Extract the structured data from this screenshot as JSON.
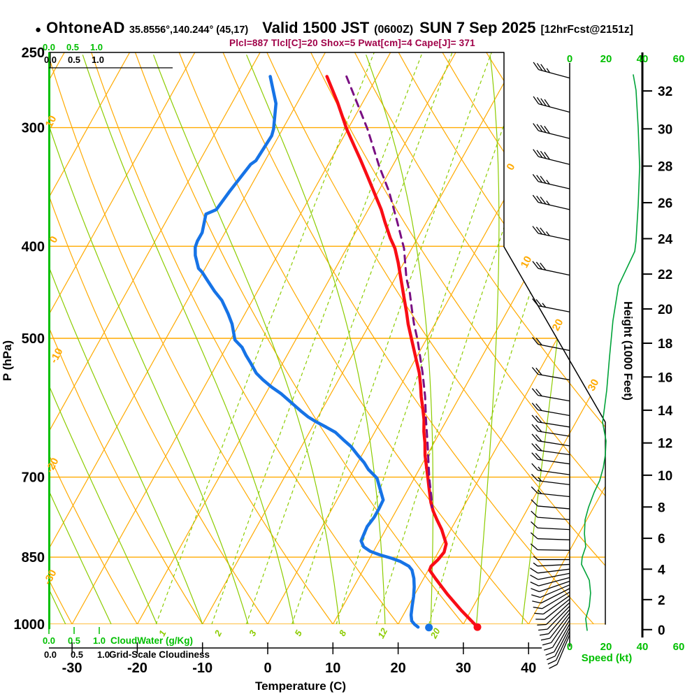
{
  "header": {
    "bullet": "●",
    "station": "OhtoneAD",
    "coords": "35.8556°,140.244° (45,17)",
    "valid": "Valid 1500 JST",
    "valid_z": "(0600Z)",
    "date": "SUN 7 Sep 2025",
    "fcst": "[12hrFcst@2151z]"
  },
  "stats_line": "Plcl=887 Tlcl[C]=20 Shox=5 Pwat[cm]=4 Cape[J]= 371",
  "stats": {
    "plcl": 887,
    "tlcl_c": 20,
    "shox": 5,
    "pwat_cm": 4,
    "cape_j": 371
  },
  "colors": {
    "temperature": "#f90d15",
    "dewpoint": "#1673e6",
    "parcel": "#7a0f82",
    "stats": "#a00048",
    "grid_orange": "#ffaa00",
    "grid_green": "#8ccc00",
    "speed_green": "#00a339",
    "bright_green": "#00bf00",
    "black": "#000000"
  },
  "chart_data": {
    "type": "skewt-logp",
    "pressure_axis": {
      "label": "P (hPa)",
      "ticks": [
        250,
        300,
        400,
        500,
        700,
        850,
        1000
      ],
      "gridlines": [
        300,
        400,
        500,
        700,
        850,
        1000
      ],
      "range": [
        250,
        1000
      ]
    },
    "temperature_axis": {
      "label": "Temperature (C)",
      "ticks": [
        -30,
        -20,
        -10,
        0,
        10,
        20,
        30,
        40
      ]
    },
    "height_axis": {
      "label": "Height (1000 Feet)",
      "ticks": [
        0,
        2,
        4,
        6,
        8,
        10,
        12,
        14,
        16,
        18,
        20,
        22,
        24,
        26,
        28,
        30,
        32
      ]
    },
    "speed_axis": {
      "label": "Speed (kt)",
      "ticks": [
        0,
        20,
        40,
        60
      ]
    },
    "cloudwater_axis": {
      "label": "CloudWater (g/Kg)",
      "ticks": [
        "0.0",
        "0.5",
        "1.0"
      ]
    },
    "cloudiness_axis": {
      "label": "Grid-Scale Cloudiness",
      "ticks": [
        "0.0",
        "0.5",
        "1.0"
      ]
    },
    "isotherm_labels": [
      0,
      10,
      20,
      30
    ],
    "dry_adiabat_labels": [
      10,
      0,
      -10,
      -20,
      -30
    ],
    "mixing_ratio_lines": [
      1,
      2,
      3,
      5,
      8,
      12,
      20
    ],
    "moist_adiabat_surface_temps": [
      -31,
      -24,
      -17,
      -10,
      -3,
      4,
      11,
      18,
      25,
      32,
      39
    ],
    "isotherms": {
      "start": -90,
      "end": 40,
      "step": 10
    },
    "dry_adiabats": {
      "start": -40,
      "end": 110,
      "step": 10
    },
    "temperature_profile": [
      [
        265,
        -37.7
      ],
      [
        282,
        -33.9
      ],
      [
        301,
        -30.2
      ],
      [
        314,
        -27.5
      ],
      [
        324,
        -25.5
      ],
      [
        339,
        -22.7
      ],
      [
        356,
        -19.7
      ],
      [
        366,
        -18.0
      ],
      [
        377,
        -16.4
      ],
      [
        392,
        -14.2
      ],
      [
        402,
        -12.6
      ],
      [
        416,
        -10.9
      ],
      [
        426,
        -9.8
      ],
      [
        453,
        -7.0
      ],
      [
        469,
        -5.4
      ],
      [
        483,
        -4.1
      ],
      [
        502,
        -2.2
      ],
      [
        530,
        0.5
      ],
      [
        544,
        1.8
      ],
      [
        560,
        3.0
      ],
      [
        576,
        4.1
      ],
      [
        592,
        5.3
      ],
      [
        609,
        6.5
      ],
      [
        627,
        7.5
      ],
      [
        644,
        8.6
      ],
      [
        664,
        9.7
      ],
      [
        702,
        12.1
      ],
      [
        722,
        13.3
      ],
      [
        744,
        14.6
      ],
      [
        760,
        15.7
      ],
      [
        776,
        17.0
      ],
      [
        795,
        18.6
      ],
      [
        823,
        20.5
      ],
      [
        840,
        20.9
      ],
      [
        855,
        20.6
      ],
      [
        869,
        20.1
      ],
      [
        877,
        20.2
      ],
      [
        895,
        21.8
      ],
      [
        930,
        25.0
      ],
      [
        967,
        28.5
      ],
      [
        1007,
        32.4
      ]
    ],
    "dewpoint_profile": [
      [
        265,
        -46.4
      ],
      [
        283,
        -43.2
      ],
      [
        301,
        -41.4
      ],
      [
        306,
        -41.1
      ],
      [
        325,
        -41.4
      ],
      [
        328,
        -41.9
      ],
      [
        350,
        -42.8
      ],
      [
        366,
        -43.3
      ],
      [
        370,
        -44.5
      ],
      [
        387,
        -43.5
      ],
      [
        395,
        -43.5
      ],
      [
        401,
        -43.3
      ],
      [
        409,
        -42.6
      ],
      [
        422,
        -41.0
      ],
      [
        426,
        -40.1
      ],
      [
        434,
        -38.7
      ],
      [
        446,
        -36.6
      ],
      [
        456,
        -34.7
      ],
      [
        471,
        -32.6
      ],
      [
        483,
        -31.1
      ],
      [
        502,
        -29.3
      ],
      [
        511,
        -27.6
      ],
      [
        521,
        -26.3
      ],
      [
        531,
        -24.9
      ],
      [
        544,
        -23.2
      ],
      [
        553,
        -21.6
      ],
      [
        563,
        -19.6
      ],
      [
        572,
        -17.6
      ],
      [
        585,
        -15.2
      ],
      [
        596,
        -13.2
      ],
      [
        605,
        -11.5
      ],
      [
        612,
        -9.9
      ],
      [
        620,
        -7.9
      ],
      [
        628,
        -6.0
      ],
      [
        641,
        -3.9
      ],
      [
        650,
        -2.4
      ],
      [
        664,
        -0.6
      ],
      [
        676,
        1.0
      ],
      [
        687,
        2.2
      ],
      [
        702,
        4.3
      ],
      [
        740,
        7.1
      ],
      [
        756,
        7.2
      ],
      [
        772,
        7.2
      ],
      [
        789,
        6.9
      ],
      [
        817,
        7.2
      ],
      [
        829,
        8.1
      ],
      [
        838,
        9.5
      ],
      [
        845,
        11.2
      ],
      [
        852,
        13.3
      ],
      [
        859,
        15.0
      ],
      [
        869,
        16.7
      ],
      [
        877,
        17.5
      ],
      [
        895,
        18.5
      ],
      [
        914,
        19.3
      ],
      [
        935,
        20.0
      ],
      [
        957,
        20.6
      ],
      [
        978,
        21.2
      ],
      [
        992,
        21.8
      ],
      [
        1000,
        22.5
      ],
      [
        1007,
        23.3
      ]
    ],
    "parcel_profile": [
      [
        265,
        -34.7
      ],
      [
        301,
        -27.0
      ],
      [
        329,
        -22.1
      ],
      [
        350,
        -18.4
      ],
      [
        377,
        -14.5
      ],
      [
        402,
        -11.2
      ],
      [
        432,
        -8.3
      ],
      [
        448,
        -6.5
      ],
      [
        467,
        -4.7
      ],
      [
        483,
        -3.2
      ],
      [
        502,
        -1.3
      ],
      [
        544,
        2.3
      ],
      [
        576,
        4.7
      ],
      [
        609,
        6.8
      ],
      [
        644,
        9.0
      ],
      [
        682,
        11.2
      ],
      [
        702,
        12.3
      ],
      [
        734,
        14.2
      ],
      [
        753,
        15.2
      ]
    ],
    "surface_temp_point": [
      1007,
      32.4
    ],
    "surface_dewp_point": [
      1008,
      25.0
    ],
    "cloudwater_profile": [
      [
        256,
        0
      ],
      [
        1000,
        0
      ]
    ],
    "wind_speed_profile": [
      [
        264,
        35
      ],
      [
        274,
        36.5
      ],
      [
        300,
        37.7
      ],
      [
        330,
        38.5
      ],
      [
        362,
        37.7
      ],
      [
        395,
        36.5
      ],
      [
        405,
        35.8
      ],
      [
        440,
        26.9
      ],
      [
        479,
        23.8
      ],
      [
        524,
        21.9
      ],
      [
        567,
        20.4
      ],
      [
        613,
        18.1
      ],
      [
        641,
        20
      ],
      [
        663,
        19.6
      ],
      [
        684,
        18.5
      ],
      [
        706,
        16.5
      ],
      [
        726,
        13.5
      ],
      [
        753,
        10.4
      ],
      [
        776,
        8.5
      ],
      [
        803,
        8.1
      ],
      [
        829,
        8.8
      ],
      [
        850,
        6.9
      ],
      [
        865,
        6.5
      ],
      [
        899,
        10.8
      ],
      [
        927,
        11.5
      ],
      [
        957,
        10.8
      ],
      [
        987,
        8.8
      ],
      [
        1015,
        9.6
      ]
    ],
    "wind_barbs": [
      [
        266,
        35,
        15
      ],
      [
        289,
        38,
        15
      ],
      [
        308,
        38,
        14
      ],
      [
        328,
        38,
        14
      ],
      [
        348,
        37,
        13
      ],
      [
        366,
        37,
        13
      ],
      [
        394,
        36,
        12
      ],
      [
        429,
        28,
        12
      ],
      [
        469,
        25,
        11
      ],
      [
        515,
        22,
        11
      ],
      [
        553,
        20,
        10
      ],
      [
        582,
        19,
        10
      ],
      [
        603,
        18,
        10
      ],
      [
        620,
        18,
        9
      ],
      [
        634,
        19,
        9
      ],
      [
        649,
        19,
        9
      ],
      [
        663,
        18,
        8
      ],
      [
        678,
        18,
        8
      ],
      [
        696,
        17,
        8
      ],
      [
        713,
        16,
        7
      ],
      [
        734,
        13,
        6
      ],
      [
        756,
        10,
        5
      ],
      [
        776,
        10,
        4
      ],
      [
        795,
        9,
        3
      ],
      [
        815,
        8,
        2
      ],
      [
        836,
        9,
        1
      ],
      [
        855,
        7,
        0
      ],
      [
        865,
        7,
        -3
      ],
      [
        875,
        8,
        -7
      ],
      [
        884,
        9,
        -11
      ],
      [
        893,
        10,
        -15
      ],
      [
        901,
        10,
        -19
      ],
      [
        909,
        11,
        -23
      ],
      [
        917,
        11,
        -27
      ],
      [
        925,
        10,
        -31
      ],
      [
        933,
        10,
        -35
      ],
      [
        941,
        10,
        -39
      ],
      [
        949,
        10,
        -43
      ],
      [
        957,
        10,
        -46
      ],
      [
        965,
        10,
        -49
      ],
      [
        973,
        10,
        -52
      ],
      [
        981,
        10,
        -55
      ],
      [
        990,
        10,
        -58
      ],
      [
        999,
        10,
        -61
      ],
      [
        1008,
        10,
        -63
      ],
      [
        1017,
        10,
        -65
      ],
      [
        1026,
        10,
        -67
      ]
    ]
  }
}
